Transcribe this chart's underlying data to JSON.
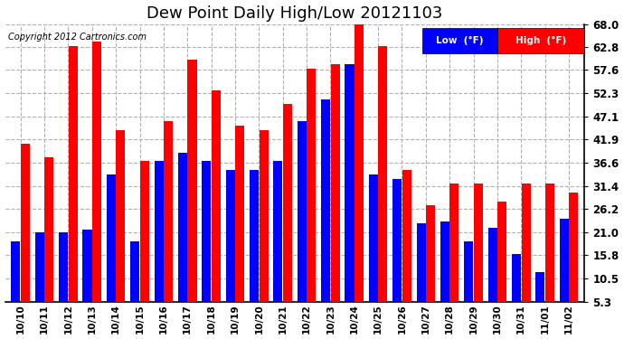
{
  "title": "Dew Point Daily High/Low 20121103",
  "copyright": "Copyright 2012 Cartronics.com",
  "dates": [
    "10/10",
    "10/11",
    "10/12",
    "10/13",
    "10/14",
    "10/15",
    "10/16",
    "10/17",
    "10/18",
    "10/19",
    "10/20",
    "10/21",
    "10/22",
    "10/23",
    "10/24",
    "10/25",
    "10/26",
    "10/27",
    "10/28",
    "10/29",
    "10/30",
    "10/31",
    "11/01",
    "11/02"
  ],
  "low": [
    19.0,
    21.0,
    21.0,
    21.5,
    34.0,
    19.0,
    37.0,
    39.0,
    37.0,
    35.0,
    35.0,
    37.0,
    46.0,
    51.0,
    59.0,
    34.0,
    33.0,
    23.0,
    23.5,
    19.0,
    22.0,
    16.0,
    12.0,
    24.0
  ],
  "high": [
    41.0,
    38.0,
    63.0,
    64.0,
    44.0,
    37.0,
    46.0,
    60.0,
    53.0,
    45.0,
    44.0,
    50.0,
    58.0,
    59.0,
    68.0,
    63.0,
    35.0,
    27.0,
    32.0,
    32.0,
    28.0,
    32.0,
    32.0,
    30.0
  ],
  "ylim_min": 5.3,
  "ylim_max": 68.0,
  "yticks": [
    5.3,
    10.5,
    15.8,
    21.0,
    26.2,
    31.4,
    36.6,
    41.9,
    47.1,
    52.3,
    57.6,
    62.8,
    68.0
  ],
  "low_color": "#0000ff",
  "high_color": "#ff0000",
  "bg_color": "#ffffff",
  "grid_color": "#b0b0b0",
  "title_fontsize": 13,
  "legend_low_label": "Low  (°F)",
  "legend_high_label": "High  (°F)"
}
